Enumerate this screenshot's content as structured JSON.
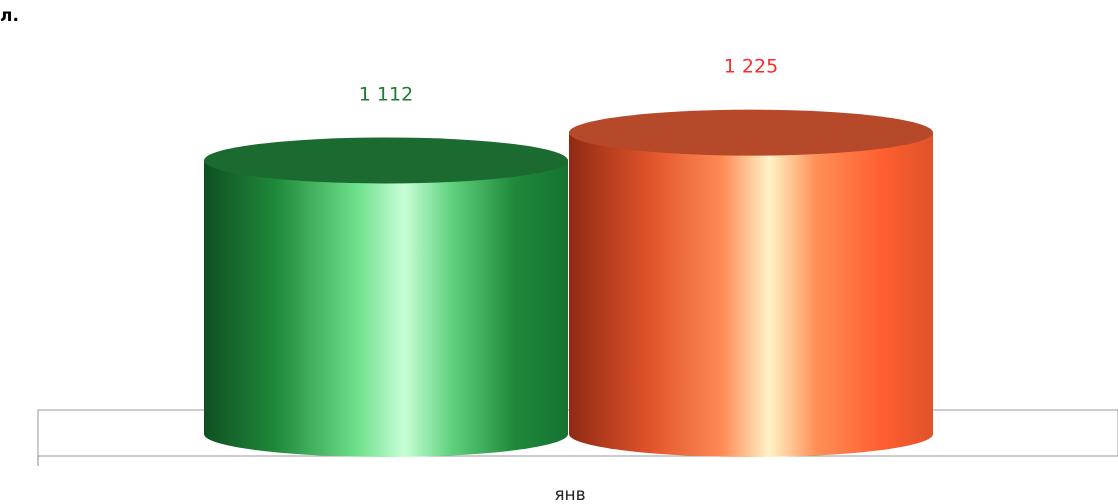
{
  "chart_data": {
    "type": "bar",
    "style": "3d-cylinder",
    "title_fragment": "л.",
    "categories": [
      "янв"
    ],
    "series": [
      {
        "values": [
          1112
        ],
        "color": "#1f8a3a",
        "label_color": "#1e7b34"
      },
      {
        "values": [
          1225
        ],
        "color": "#e8542a",
        "label_color": "#ff2b2b"
      }
    ],
    "ylim": [
      0,
      1300
    ],
    "data_label_texts": [
      "1 112",
      "1 225"
    ],
    "grid": false,
    "legend": "none"
  }
}
